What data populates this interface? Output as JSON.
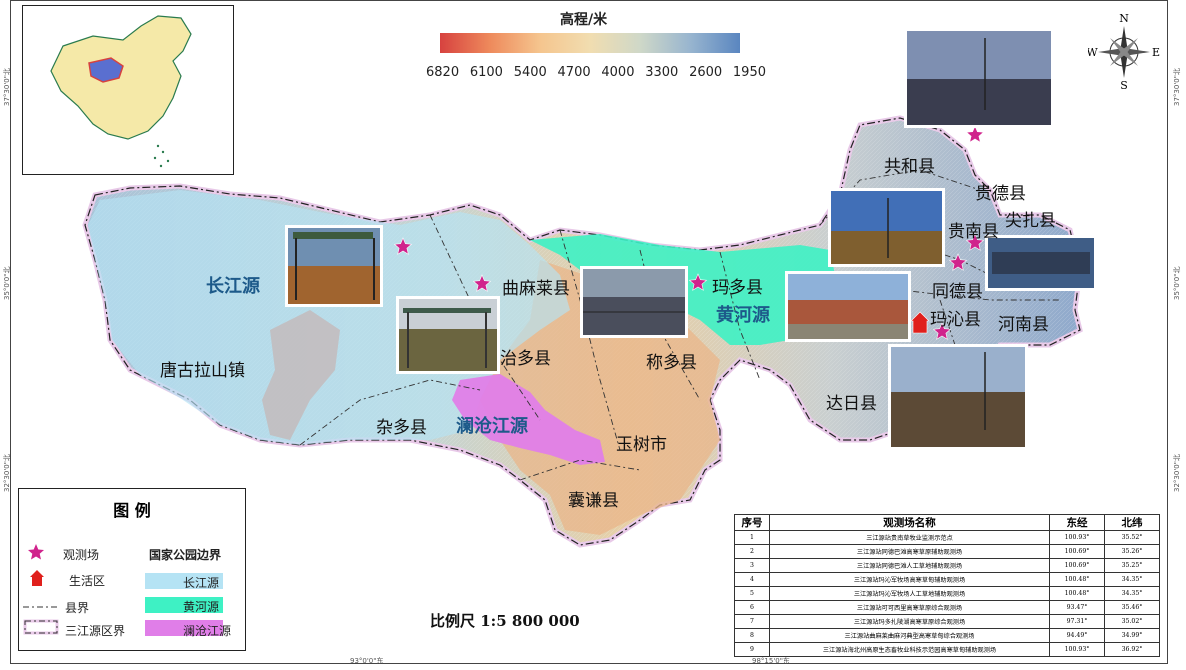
{
  "elevation_legend": {
    "title": "高程/米",
    "ticks": [
      "6820",
      "6100",
      "5400",
      "4700",
      "4000",
      "3300",
      "2600",
      "1950"
    ]
  },
  "compass": {
    "n": "N",
    "s": "S",
    "e": "E",
    "w": "W"
  },
  "county_labels": {
    "gonghe": "共和县",
    "guide": "贵德县",
    "guinan": "贵南县",
    "jianzha": "尖扎县",
    "tongde": "同德县",
    "henan": "河南县",
    "maqin": "玛沁县",
    "maduo": "玛多县",
    "dari": "达日县",
    "chenduo": "称多县",
    "yushu": "玉树市",
    "nangqian": "囊谦县",
    "zaduo": "杂多县",
    "zhiduo": "治多县",
    "qumalai": "曲麻莱县",
    "tanggula": "唐古拉山镇"
  },
  "source_labels": {
    "changjiang": "长江源",
    "huanghe": "黄河源",
    "lancang": "澜沧江源"
  },
  "ticks": {
    "left_upper": "37°30'0\"北",
    "left_middle": "35°0'0\"北",
    "left_lower": "32°30'0\"北",
    "right_upper": "37°30'0\"北",
    "right_middle": "35°0'0\"北",
    "right_lower": "32°30'0\"北",
    "bottom_left": "93°0'0\"东",
    "bottom_right": "98°15'0\"东"
  },
  "legend": {
    "title": "图 例",
    "site": "观测场",
    "living": "生活区",
    "county_boundary": "县界",
    "region_boundary": "三江源区界",
    "park_title": "国家公园边界",
    "changjiang": "长江源",
    "huanghe": "黄河源",
    "lancang": "澜沧江源",
    "colors": {
      "changjiang": "#b5e3f4",
      "huanghe": "#3ef1c4",
      "lancang": "#e07ee8",
      "star": "#d0238c",
      "home": "#e0201c"
    }
  },
  "scale": {
    "label": "比例尺",
    "value": "1:5 800 000"
  },
  "site_table": {
    "headers": {
      "no": "序号",
      "name": "观测场名称",
      "lon": "东经",
      "lat": "北纬"
    },
    "rows": [
      {
        "no": "1",
        "name": "三江源站贵南草牧业监测示范点",
        "lon": "100.93°",
        "lat": "35.52°"
      },
      {
        "no": "2",
        "name": "三江源站同德巴滩高寒草原辅助观测场",
        "lon": "100.69°",
        "lat": "35.26°"
      },
      {
        "no": "3",
        "name": "三江源站同德巴滩人工草地辅助观测场",
        "lon": "100.69°",
        "lat": "35.25°"
      },
      {
        "no": "4",
        "name": "三江源站玛沁军牧场高寒草甸辅助观测场",
        "lon": "100.48°",
        "lat": "34.35°"
      },
      {
        "no": "5",
        "name": "三江源站玛沁军牧场人工草地辅助观测场",
        "lon": "100.48°",
        "lat": "34.35°"
      },
      {
        "no": "6",
        "name": "三江源站可可西里高寒草原综合观测场",
        "lon": "93.47°",
        "lat": "35.46°"
      },
      {
        "no": "7",
        "name": "三江源站玛多扎陵湖高寒草原综合观测场",
        "lon": "97.31°",
        "lat": "35.02°"
      },
      {
        "no": "8",
        "name": "三江源站曲麻莱曲麻河典型高寒草甸综合观测场",
        "lon": "94.49°",
        "lat": "34.99°"
      },
      {
        "no": "9",
        "name": "三江源站海北州高原生态畜牧业科技示范园高寒草甸辅助观测场",
        "lon": "100.93°",
        "lat": "36.92°"
      }
    ]
  }
}
